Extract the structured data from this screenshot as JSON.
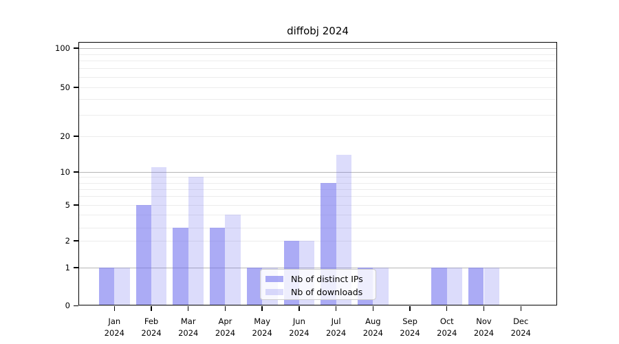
{
  "figure": {
    "title": "diffobj 2024"
  },
  "chart_data": {
    "type": "bar",
    "title": "diffobj 2024",
    "month_labels": [
      "Jan",
      "Feb",
      "Mar",
      "Apr",
      "May",
      "Jun",
      "Jul",
      "Aug",
      "Sep",
      "Oct",
      "Nov",
      "Dec"
    ],
    "year": "2024",
    "categories": [
      "Jan 2024",
      "Feb 2024",
      "Mar 2024",
      "Apr 2024",
      "May 2024",
      "Jun 2024",
      "Jul 2024",
      "Aug 2024",
      "Sep 2024",
      "Oct 2024",
      "Nov 2024",
      "Dec 2024"
    ],
    "series": [
      {
        "name": "Nb of distinct IPs",
        "values": [
          1,
          5,
          3,
          3,
          1,
          2,
          8,
          1,
          0,
          1,
          1,
          0
        ],
        "color": "#ababf5"
      },
      {
        "name": "Nb of downloads",
        "values": [
          1,
          11,
          9,
          4,
          1,
          2,
          14,
          1,
          0,
          1,
          1,
          0
        ],
        "color": "#dcdcfa"
      }
    ],
    "y_ticks": [
      0,
      1,
      2,
      5,
      10,
      20,
      50,
      100
    ],
    "y_major_gridlines": [
      1,
      10,
      100
    ],
    "y_minor_gridlines": [
      2,
      3,
      4,
      5,
      6,
      7,
      8,
      9,
      20,
      30,
      40,
      50,
      60,
      70,
      80,
      90
    ],
    "y_scale": "log",
    "ylim": [
      0,
      113
    ],
    "grid": true,
    "legend_position": "lower center"
  },
  "colors": {
    "distinct_ips_rgba": "rgba(110,110,238,0.58)",
    "downloads_rgba": "rgba(110,110,238,0.24)",
    "major_gridline": "#b5b5b5",
    "minor_gridline": "#ececec",
    "axis_frame": "#000000",
    "background": "#ffffff",
    "legend_background": "rgba(255,255,255,0.8)",
    "legend_border": "#cccccc",
    "text": "#000000"
  }
}
